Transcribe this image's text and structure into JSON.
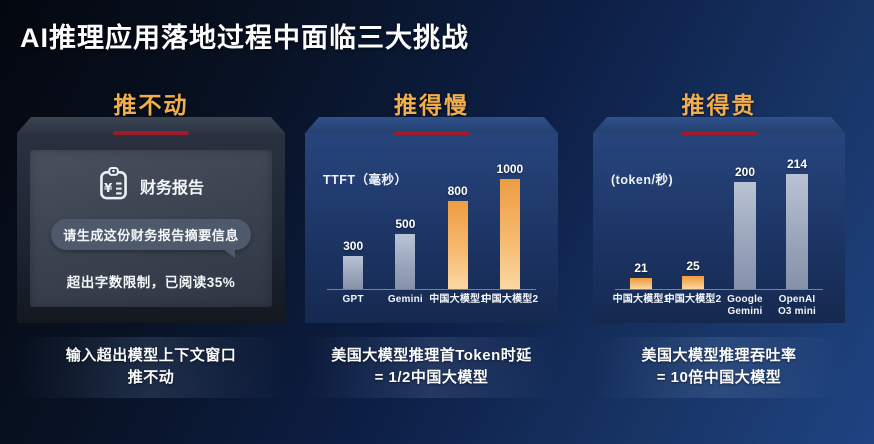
{
  "title": "AI推理应用落地过程中面临三大挑战",
  "colors": {
    "accent_gold": "#F2AE4C",
    "accent_red": "#9E1C28",
    "bar_orange_top": "#EE9C42",
    "bar_orange_bottom": "#FBD8A2",
    "bar_gray_top": "#BAC3D4",
    "bar_gray_bottom": "#8591A8"
  },
  "panels": [
    {
      "title": "推不动",
      "doc_label": "财务报告",
      "bubble_text": "请生成这份财务报告摘要信息",
      "status_text": "超出字数限制，已阅读35%",
      "caption_line1": "输入超出模型上下文窗口",
      "caption_line2": "推不动"
    },
    {
      "title": "推得慢",
      "caption_line1": "美国大模型推理首Token时延",
      "caption_line2": "= 1/2中国大模型"
    },
    {
      "title": "推得贵",
      "caption_line1": "美国大模型推理吞吐率",
      "caption_line2": "= 10倍中国大模型"
    }
  ],
  "chart_data": [
    {
      "type": "bar",
      "title": "推得慢",
      "unit_label": "TTFT（毫秒）",
      "categories": [
        "GPT",
        "Gemini",
        "中国大模型1",
        "中国大模型2"
      ],
      "values": [
        300,
        500,
        800,
        1000
      ],
      "value_labels": [
        "300",
        "500",
        "800",
        "1000"
      ],
      "bar_styles": [
        "gray",
        "gray",
        "orange",
        "orange"
      ],
      "ylim": [
        0,
        1000
      ],
      "legend": "none",
      "grid": false
    },
    {
      "type": "bar",
      "title": "推得贵",
      "unit_label": "(token/秒)",
      "categories": [
        "中国大模型1",
        "中国大模型2",
        "Google\nGemini",
        "OpenAI\nO3 mini"
      ],
      "values": [
        21,
        25,
        200,
        214
      ],
      "value_labels": [
        "21",
        "25",
        "200",
        "214"
      ],
      "bar_styles": [
        "orange",
        "orange",
        "gray",
        "gray"
      ],
      "ylim": [
        0,
        214
      ],
      "legend": "none",
      "grid": false
    }
  ]
}
